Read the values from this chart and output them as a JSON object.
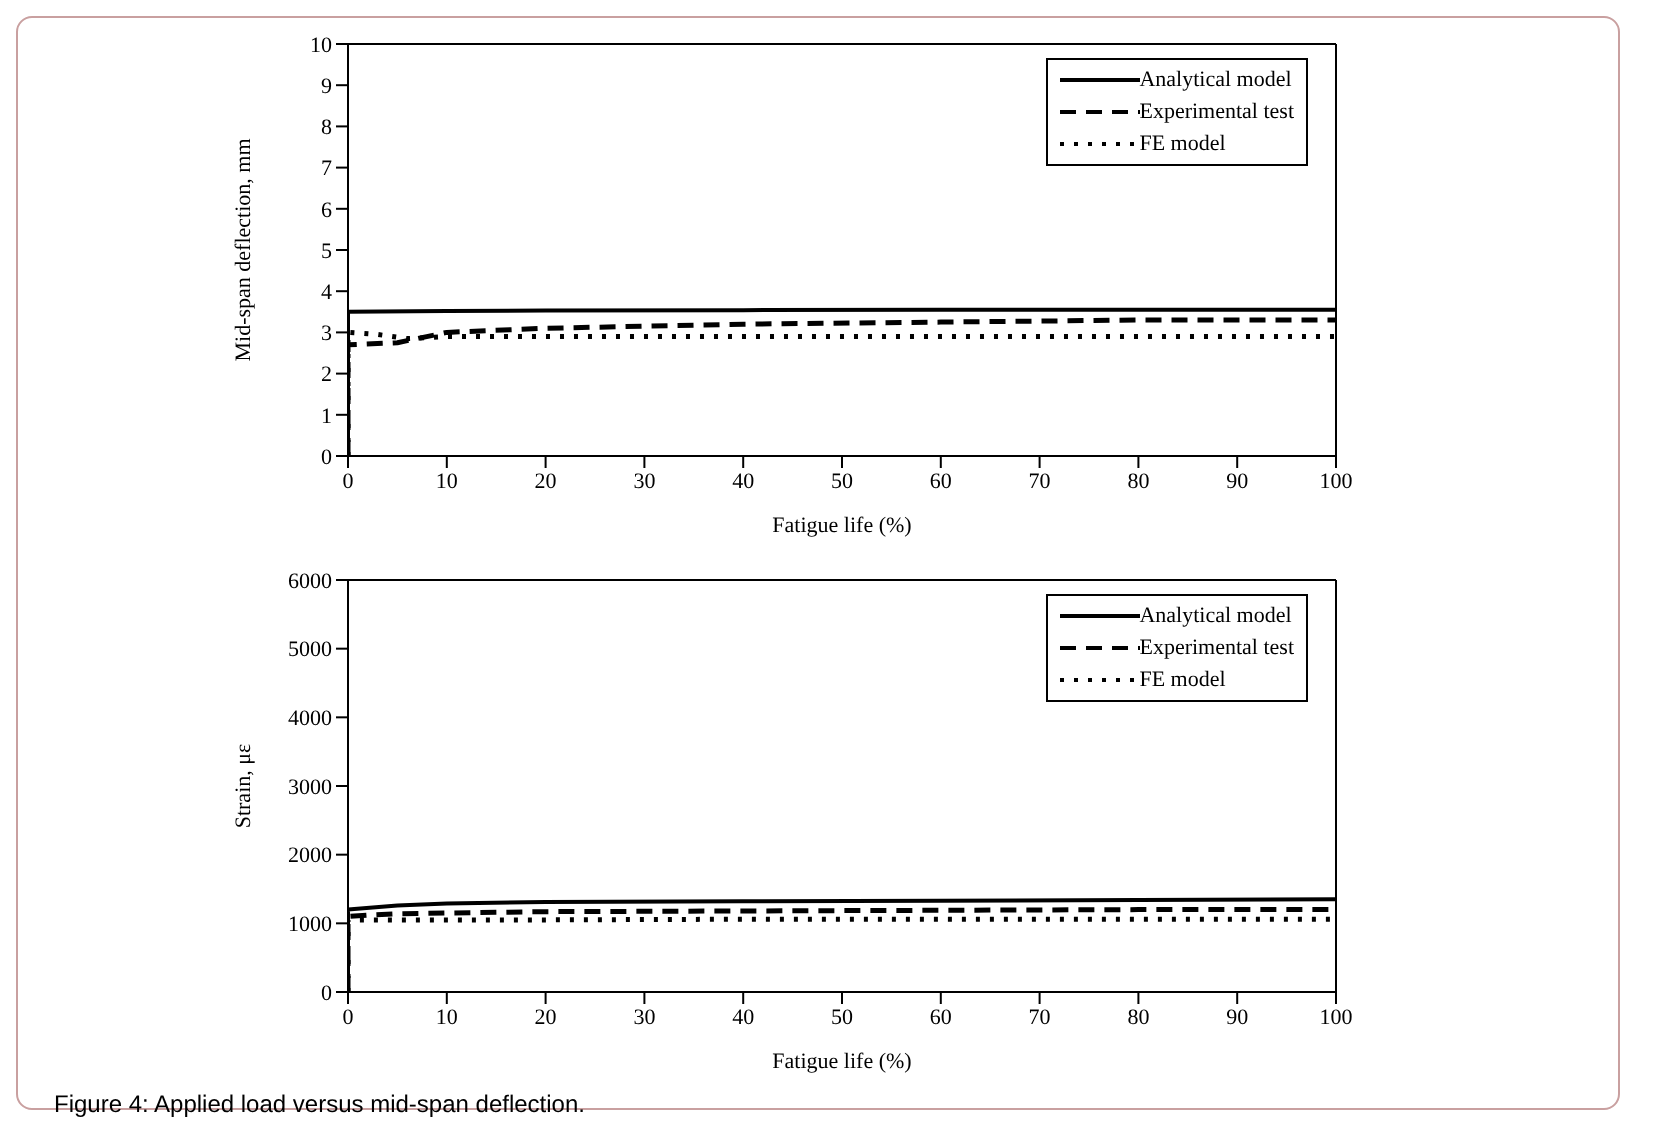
{
  "chart_data": [
    {
      "type": "line",
      "xlabel": "Fatigue life (%)",
      "ylabel": "Mid-span deflection, mm",
      "xlim": [
        0,
        100
      ],
      "xticks": [
        0,
        10,
        20,
        30,
        40,
        50,
        60,
        70,
        80,
        90,
        100
      ],
      "ylim": [
        0,
        10
      ],
      "yticks": [
        0,
        1,
        2,
        3,
        4,
        5,
        6,
        7,
        8,
        9,
        10
      ],
      "legend": "top right",
      "marker": "none",
      "series": [
        {
          "name": "Analytical model",
          "color": "#000000",
          "line_style": "solid",
          "x": [
            0,
            0,
            10,
            20,
            40,
            60,
            80,
            100
          ],
          "values": [
            0,
            3.5,
            3.52,
            3.53,
            3.54,
            3.55,
            3.55,
            3.55
          ]
        },
        {
          "name": "Experimental test",
          "color": "#000000",
          "line_style": "dashed",
          "x": [
            0,
            0,
            5,
            10,
            20,
            30,
            40,
            60,
            80,
            100
          ],
          "values": [
            0,
            2.7,
            2.75,
            3.0,
            3.1,
            3.15,
            3.2,
            3.25,
            3.3,
            3.3
          ]
        },
        {
          "name": "FE model",
          "color": "#000000",
          "line_style": "dotted",
          "x": [
            0,
            0,
            3,
            6,
            10,
            20,
            40,
            60,
            80,
            100
          ],
          "values": [
            0,
            3.0,
            2.95,
            2.85,
            2.9,
            2.9,
            2.9,
            2.9,
            2.9,
            2.9
          ]
        }
      ]
    },
    {
      "type": "line",
      "xlabel": "Fatigue life (%)",
      "ylabel": "Strain, με",
      "xlim": [
        0,
        100
      ],
      "xticks": [
        0,
        10,
        20,
        30,
        40,
        50,
        60,
        70,
        80,
        90,
        100
      ],
      "ylim": [
        0,
        6000
      ],
      "yticks": [
        0,
        1000,
        2000,
        3000,
        4000,
        5000,
        6000
      ],
      "legend": "top right",
      "marker": "none",
      "annotations": [
        "Figure 4: Applied load versus mid-span deflection."
      ],
      "series": [
        {
          "name": "Analytical model",
          "color": "#000000",
          "line_style": "solid",
          "x": [
            0,
            0,
            5,
            10,
            20,
            40,
            60,
            80,
            100
          ],
          "values": [
            0,
            1200,
            1260,
            1290,
            1310,
            1320,
            1330,
            1340,
            1350
          ]
        },
        {
          "name": "Experimental test",
          "color": "#000000",
          "line_style": "dashed",
          "x": [
            0,
            0,
            2,
            5,
            10,
            20,
            40,
            60,
            80,
            100
          ],
          "values": [
            0,
            1100,
            1120,
            1140,
            1150,
            1170,
            1180,
            1190,
            1200,
            1200
          ]
        },
        {
          "name": "FE model",
          "color": "#000000",
          "line_style": "dotted",
          "x": [
            0,
            0,
            5,
            10,
            20,
            40,
            60,
            80,
            100
          ],
          "values": [
            0,
            1050,
            1050,
            1050,
            1050,
            1060,
            1060,
            1060,
            1060
          ]
        }
      ]
    }
  ]
}
